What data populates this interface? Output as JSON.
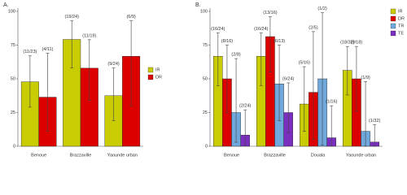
{
  "chart_data": [
    {
      "type": "bar",
      "label": "A.",
      "categories": [
        "Benoue",
        "Brazzaville",
        "Yaounde urban"
      ],
      "ylim": [
        0,
        100
      ],
      "yticks": [
        0,
        25,
        50,
        75,
        100
      ],
      "legend": "right",
      "series": [
        {
          "name": "IR",
          "color": "#c9cc00",
          "values": [
            47.8,
            79.2,
            37.5
          ],
          "value_labels": [
            "(11/23)",
            "(19/24)",
            "(9/24)"
          ],
          "ci_low": [
            29,
            58,
            19
          ],
          "ci_high": [
            67,
            93,
            58
          ]
        },
        {
          "name": "DR",
          "color": "#dd0000",
          "values": [
            36.4,
            57.9,
            66.7
          ],
          "value_labels": [
            "(4/11)",
            "(11/19)",
            "(6/9)"
          ],
          "ci_low": [
            11,
            34,
            30
          ],
          "ci_high": [
            69,
            79,
            93
          ]
        }
      ]
    },
    {
      "type": "bar",
      "label": "B.",
      "categories": [
        "Benoue",
        "Brazzaville",
        "Douala",
        "Yaounde urban"
      ],
      "ylim": [
        0,
        100
      ],
      "yticks": [
        0,
        25,
        50,
        75,
        100
      ],
      "legend": "top-right",
      "series": [
        {
          "name": "IR",
          "color": "#c9cc00",
          "values": [
            66.7,
            66.7,
            31.3,
            56.3
          ],
          "value_labels": [
            "(16/24)",
            "(16/24)",
            "(5/16)",
            "(18/32)"
          ],
          "ci_low": [
            45,
            45,
            11,
            38
          ],
          "ci_high": [
            84,
            84,
            59,
            74
          ]
        },
        {
          "name": "DR",
          "color": "#dd0000",
          "values": [
            50,
            81.3,
            40,
            50
          ],
          "value_labels": [
            "(8/16)",
            "(13/16)",
            "(2/5)",
            "(9/18)"
          ],
          "ci_low": [
            25,
            55,
            5,
            26
          ],
          "ci_high": [
            75,
            96,
            85,
            74
          ]
        },
        {
          "name": "TR",
          "color": "#6fa8dc",
          "values": [
            25,
            46.2,
            50,
            11.1
          ],
          "value_labels": [
            "(2/8)",
            "(6/13)",
            "(1/2)",
            "(1/9)"
          ],
          "ci_low": [
            3,
            19,
            1,
            0
          ],
          "ci_high": [
            65,
            75,
            99,
            48
          ]
        },
        {
          "name": "TE",
          "color": "#7b2fbe",
          "values": [
            8.3,
            25,
            6.3,
            3.1
          ],
          "value_labels": [
            "(2/24)",
            "(6/24)",
            "(1/16)",
            "(1/32)"
          ],
          "ci_low": [
            1,
            10,
            0,
            0
          ],
          "ci_high": [
            27,
            47,
            30,
            16
          ]
        }
      ]
    }
  ]
}
